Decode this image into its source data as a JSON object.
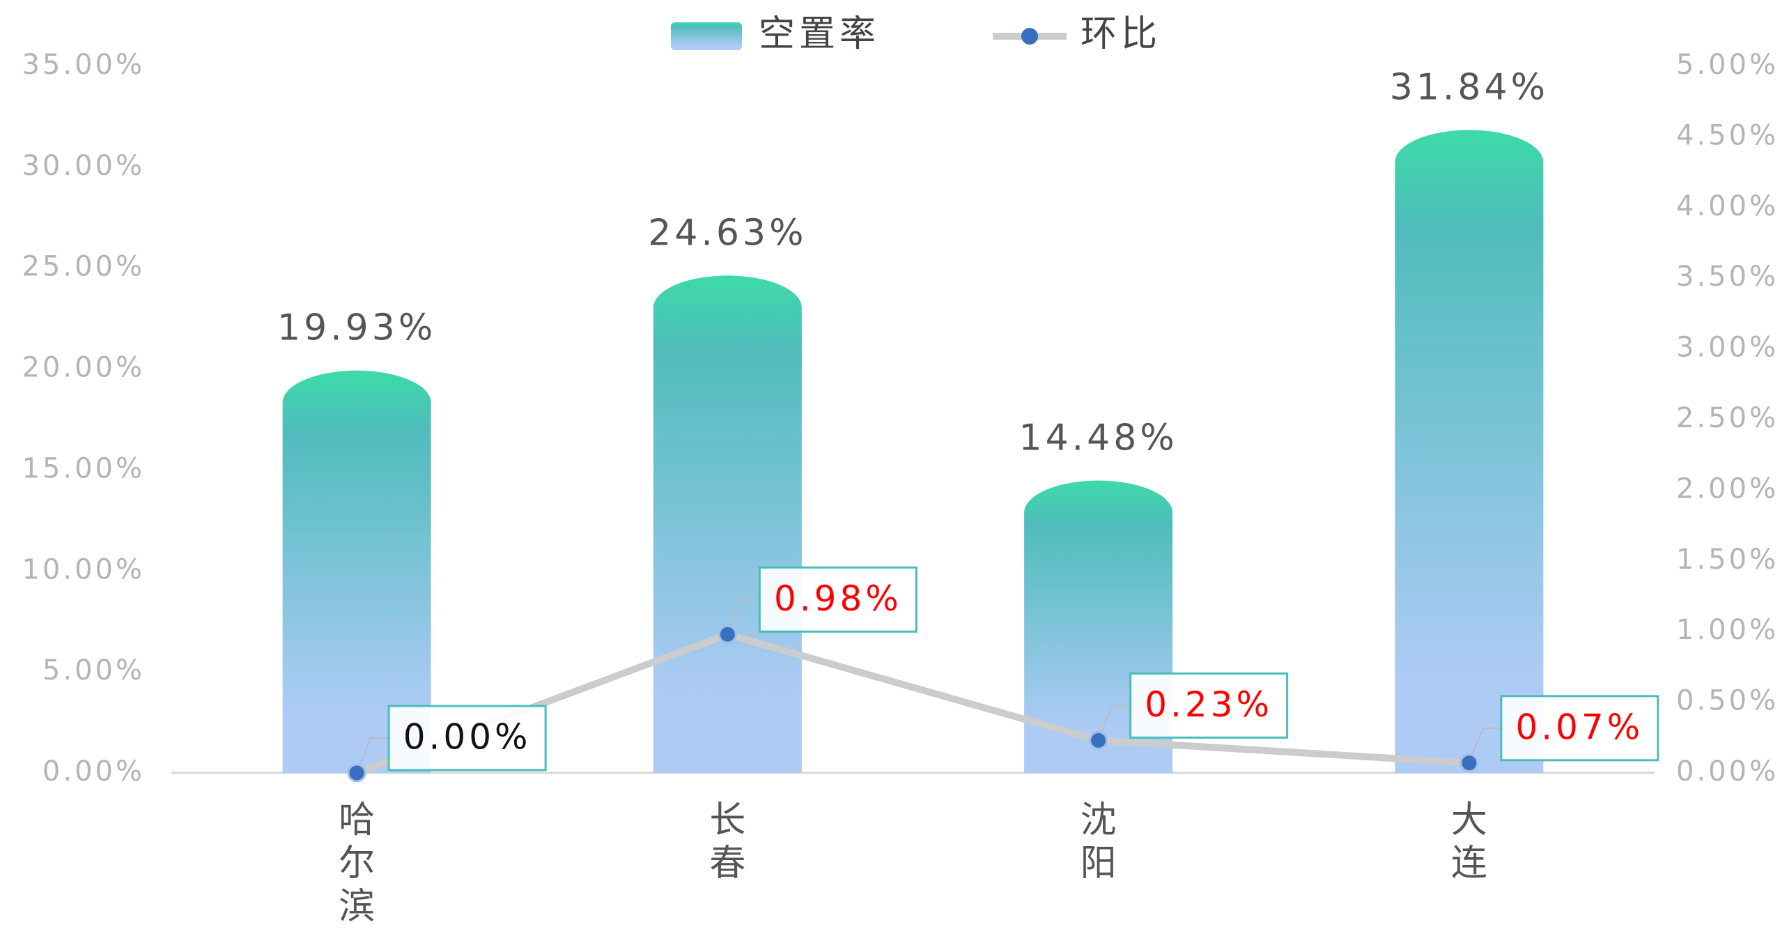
{
  "chart_data": {
    "type": "bar",
    "categories": [
      "哈尔滨",
      "长春",
      "沈阳",
      "大连"
    ],
    "series": [
      {
        "name": "空置率",
        "type": "bar",
        "color": "#3ddba8",
        "gradient_end": "#aecbf5",
        "values": [
          19.93,
          24.63,
          14.48,
          31.84
        ],
        "value_labels": [
          "19.93%",
          "24.63%",
          "14.48%",
          "31.84%"
        ]
      },
      {
        "name": "环比",
        "type": "line",
        "axis": "y2",
        "color": "#cccccc",
        "marker_color": "#3a6fc0",
        "values": [
          0.0,
          0.98,
          0.23,
          0.07
        ],
        "value_labels": [
          "0.00%",
          "0.98%",
          "0.23%",
          "0.07%"
        ],
        "label_colors": [
          "#111111",
          "#ff0000",
          "#ff0000",
          "#ff0000"
        ],
        "label_border": "#4bbcbc"
      }
    ],
    "ylim": [
      0,
      35
    ],
    "yticks": [
      {
        "value": 0,
        "label": "0.00%"
      },
      {
        "value": 5,
        "label": "5.00%"
      },
      {
        "value": 10,
        "label": "10.00%"
      },
      {
        "value": 15,
        "label": "15.00%"
      },
      {
        "value": 20,
        "label": "20.00%"
      },
      {
        "value": 25,
        "label": "25.00%"
      },
      {
        "value": 30,
        "label": "30.00%"
      },
      {
        "value": 35,
        "label": "35.00%"
      }
    ],
    "y2lim": [
      0,
      5
    ],
    "y2ticks": [
      {
        "value": 0,
        "label": "0.00%"
      },
      {
        "value": 0.5,
        "label": "0.50%"
      },
      {
        "value": 1,
        "label": "1.00%"
      },
      {
        "value": 1.5,
        "label": "1.50%"
      },
      {
        "value": 2,
        "label": "2.00%"
      },
      {
        "value": 2.5,
        "label": "2.50%"
      },
      {
        "value": 3,
        "label": "3.00%"
      },
      {
        "value": 3.5,
        "label": "3.50%"
      },
      {
        "value": 4,
        "label": "4.00%"
      },
      {
        "value": 4.5,
        "label": "4.50%"
      },
      {
        "value": 5,
        "label": "5.00%"
      }
    ],
    "legend": "top"
  }
}
